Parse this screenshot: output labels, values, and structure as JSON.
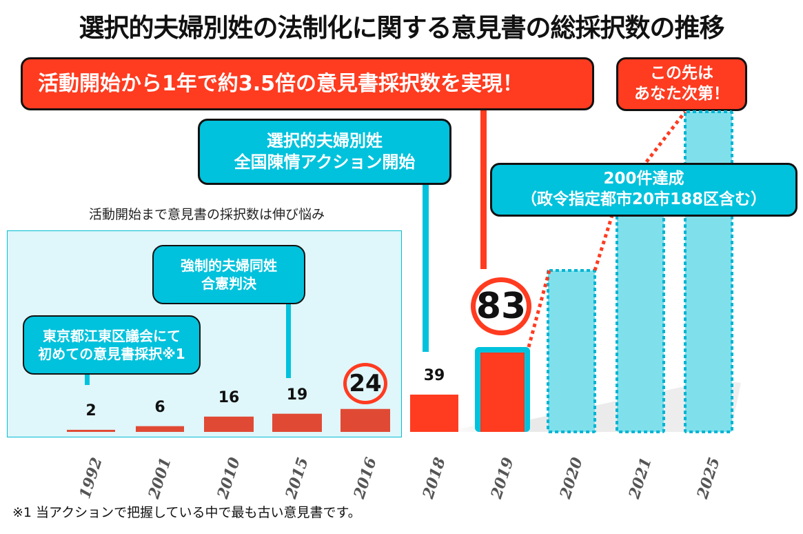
{
  "title": "選択的夫婦別姓の法制化に関する意見書の総採択数の推移",
  "callouts": {
    "headline": "活動開始から1年で約3.5倍の意見書採択数を実現！",
    "future_line1": "この先は",
    "future_line2": "あなた次第！",
    "action_line1": "選択的夫婦別姓",
    "action_line2": "全国陳情アクション開始",
    "milestone_line1": "200件達成",
    "milestone_line2": "（政令指定都市20市188区含む）",
    "ruling_line1": "強制的夫婦同姓",
    "ruling_line2": "合憲判決",
    "first_line1": "東京都江東区議会にて",
    "first_line2": "初めての意見書採択※1"
  },
  "pre_panel_caption": "活動開始まで意見書の採択数は伸び悩み",
  "footnote": "※1 当アクションで把握している中で最も古い意見書です。",
  "colors": {
    "red": "#ff3b20",
    "muted_red": "#e04a35",
    "cyan": "#00c2dc",
    "light_cyan": "#7fe0ec",
    "panel_bg": "#dff6fa"
  },
  "chart_data": {
    "type": "bar",
    "title": "選択的夫婦別姓の法制化に関する意見書の総採択数の推移",
    "xlabel": "",
    "ylabel": "",
    "categories": [
      "1992",
      "2001",
      "2010",
      "2015",
      "2016",
      "2018",
      "2019",
      "2020",
      "2021",
      "2025"
    ],
    "values": [
      2,
      6,
      16,
      19,
      24,
      39,
      83,
      null,
      null,
      null
    ],
    "value_labels": [
      "2",
      "6",
      "16",
      "19",
      "24",
      "39",
      "83",
      "",
      "",
      ""
    ],
    "projected": [
      false,
      false,
      false,
      false,
      false,
      false,
      false,
      true,
      true,
      true
    ],
    "projected_approx_values": [
      null,
      null,
      null,
      null,
      null,
      null,
      null,
      130,
      200,
      260
    ],
    "highlighted": [
      "2016",
      "2019"
    ],
    "grid": false,
    "legend": "none",
    "annotations": [
      {
        "category": "1992",
        "text": "東京都江東区議会にて初めての意見書採択※1"
      },
      {
        "category": "2015",
        "text": "強制的夫婦同姓合憲判決"
      },
      {
        "category": "2018",
        "text": "選択的夫婦別姓全国陳情アクション開始"
      },
      {
        "category": "2019",
        "text": "活動開始から1年で約3.5倍の意見書採択数を実現！"
      },
      {
        "category": "2021",
        "text": "200件達成（政令指定都市20市188区含む）"
      },
      {
        "category": "2025",
        "text": "この先はあなた次第！"
      }
    ]
  }
}
